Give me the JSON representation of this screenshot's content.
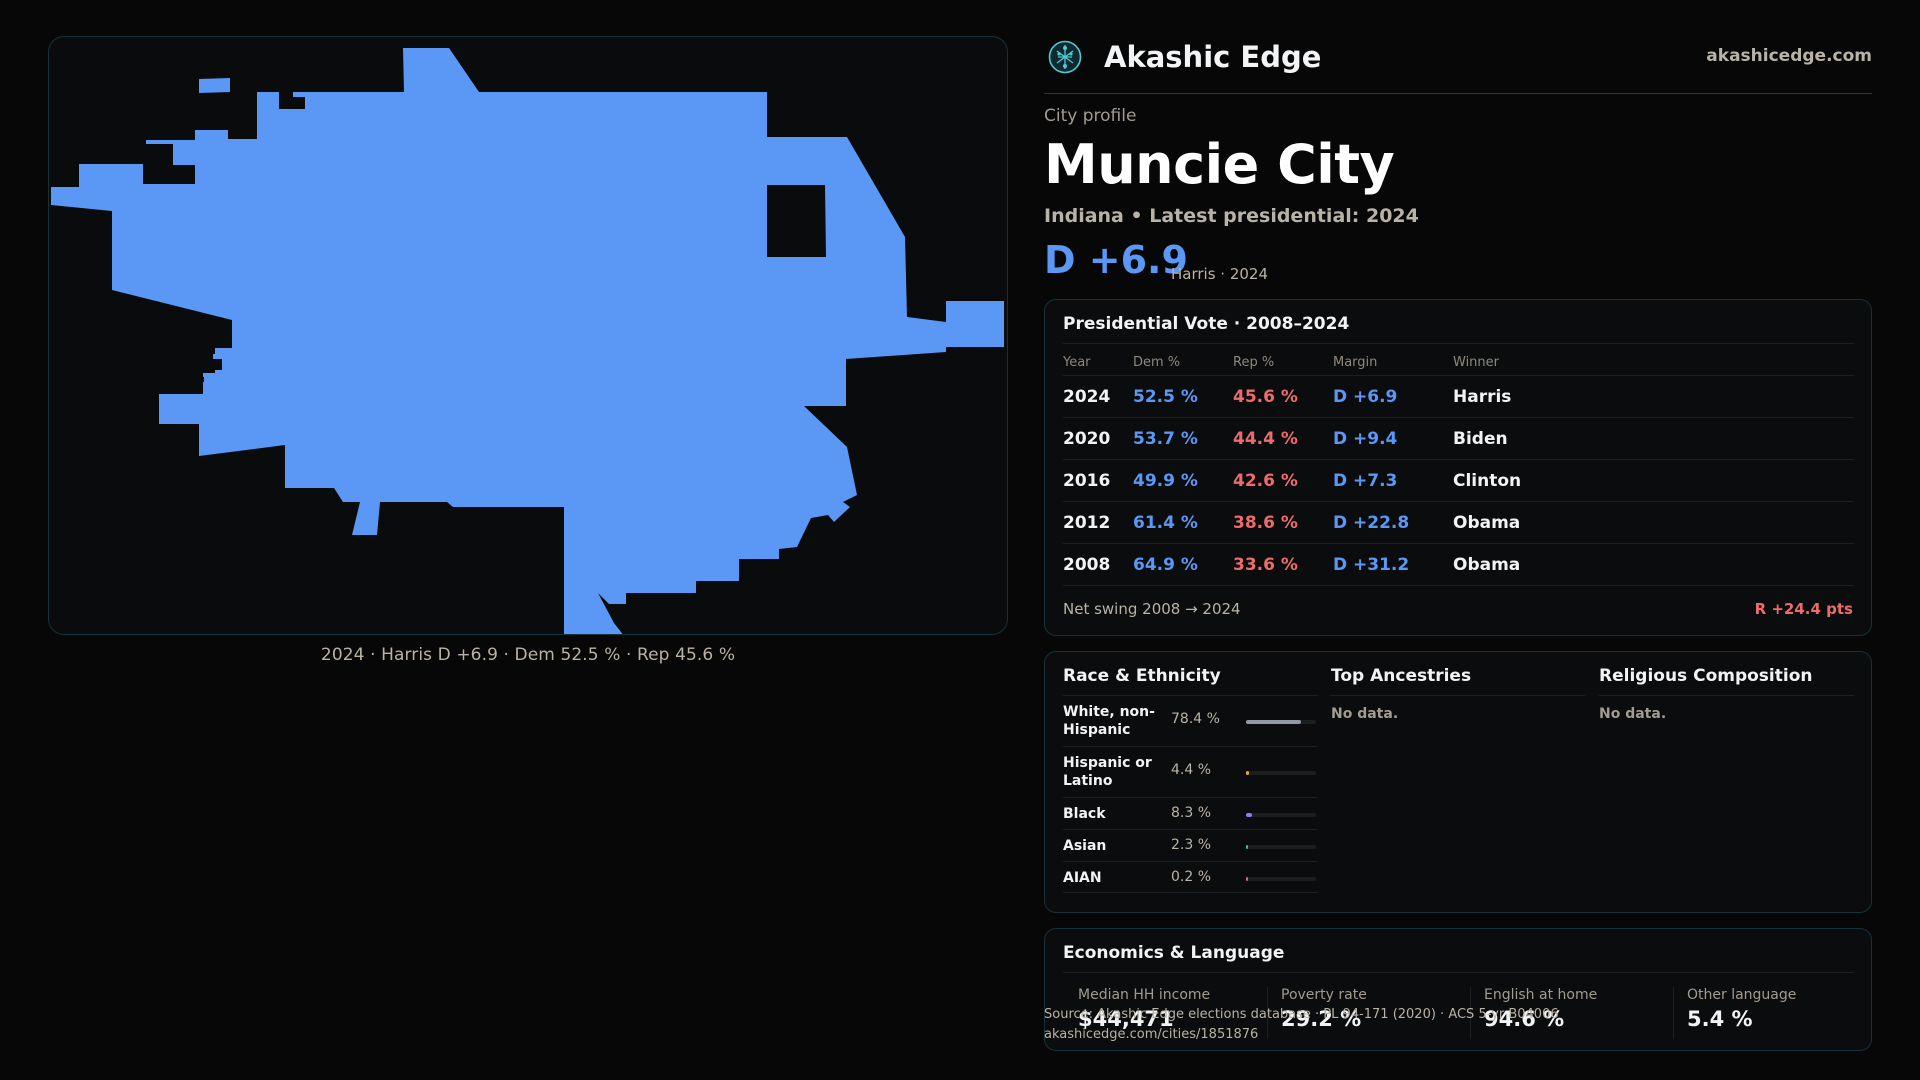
{
  "map": {
    "caption": "2024 · Harris D +6.9 · Dem 52.5 % · Rep 45.6 %",
    "fill_color": "#5b98f5"
  },
  "brand": {
    "name": "Akashic Edge",
    "url": "akashicedge.com",
    "logo_icon": "tree-of-life-icon"
  },
  "profile": {
    "eyebrow": "City profile",
    "city": "Muncie City",
    "subtitle": "Indiana • Latest presidential: 2024",
    "lean": "D +6.9",
    "lean_note": "Harris · 2024"
  },
  "votes": {
    "title": "Presidential Vote · 2008–2024",
    "headers": {
      "year": "Year",
      "dem": "Dem %",
      "rep": "Rep %",
      "margin": "Margin",
      "winner": "Winner"
    },
    "rows": [
      {
        "year": "2024",
        "dem": "52.5 %",
        "rep": "45.6 %",
        "margin": "D +6.9",
        "winner": "Harris"
      },
      {
        "year": "2020",
        "dem": "53.7 %",
        "rep": "44.4 %",
        "margin": "D +9.4",
        "winner": "Biden"
      },
      {
        "year": "2016",
        "dem": "49.9 %",
        "rep": "42.6 %",
        "margin": "D +7.3",
        "winner": "Clinton"
      },
      {
        "year": "2012",
        "dem": "61.4 %",
        "rep": "38.6 %",
        "margin": "D +22.8",
        "winner": "Obama"
      },
      {
        "year": "2008",
        "dem": "64.9 %",
        "rep": "33.6 %",
        "margin": "D +31.2",
        "winner": "Obama"
      }
    ],
    "net_swing_label": "Net swing 2008 → 2024",
    "net_swing_value": "R +24.4 pts"
  },
  "race": {
    "title": "Race & Ethnicity",
    "rows": [
      {
        "name": "White, non-Hispanic",
        "pct": "78.4 %",
        "value": 0.784,
        "color": "#8f9aa5"
      },
      {
        "name": "Hispanic or Latino",
        "pct": "4.4 %",
        "value": 0.044,
        "color": "#e0a340"
      },
      {
        "name": "Black",
        "pct": "8.3 %",
        "value": 0.083,
        "color": "#8b7cf0"
      },
      {
        "name": "Asian",
        "pct": "2.3 %",
        "value": 0.023,
        "color": "#3fb59b"
      },
      {
        "name": "AIAN",
        "pct": "0.2 %",
        "value": 0.002,
        "color": "#c46a8c"
      }
    ]
  },
  "ancestries": {
    "title": "Top Ancestries",
    "empty": "No data."
  },
  "religion": {
    "title": "Religious Composition",
    "empty": "No data."
  },
  "economics": {
    "title": "Economics & Language",
    "stats": [
      {
        "label": "Median HH income",
        "value": "$44,471"
      },
      {
        "label": "Poverty rate",
        "value": "29.2 %"
      },
      {
        "label": "English at home",
        "value": "94.6 %"
      },
      {
        "label": "Other language",
        "value": "5.4 %"
      }
    ]
  },
  "footer": {
    "source": "Source: Akashic Edge elections database · PL 94-171 (2020) · ACS 5-yr B04006",
    "link": "akashicedge.com/cities/1851876"
  }
}
